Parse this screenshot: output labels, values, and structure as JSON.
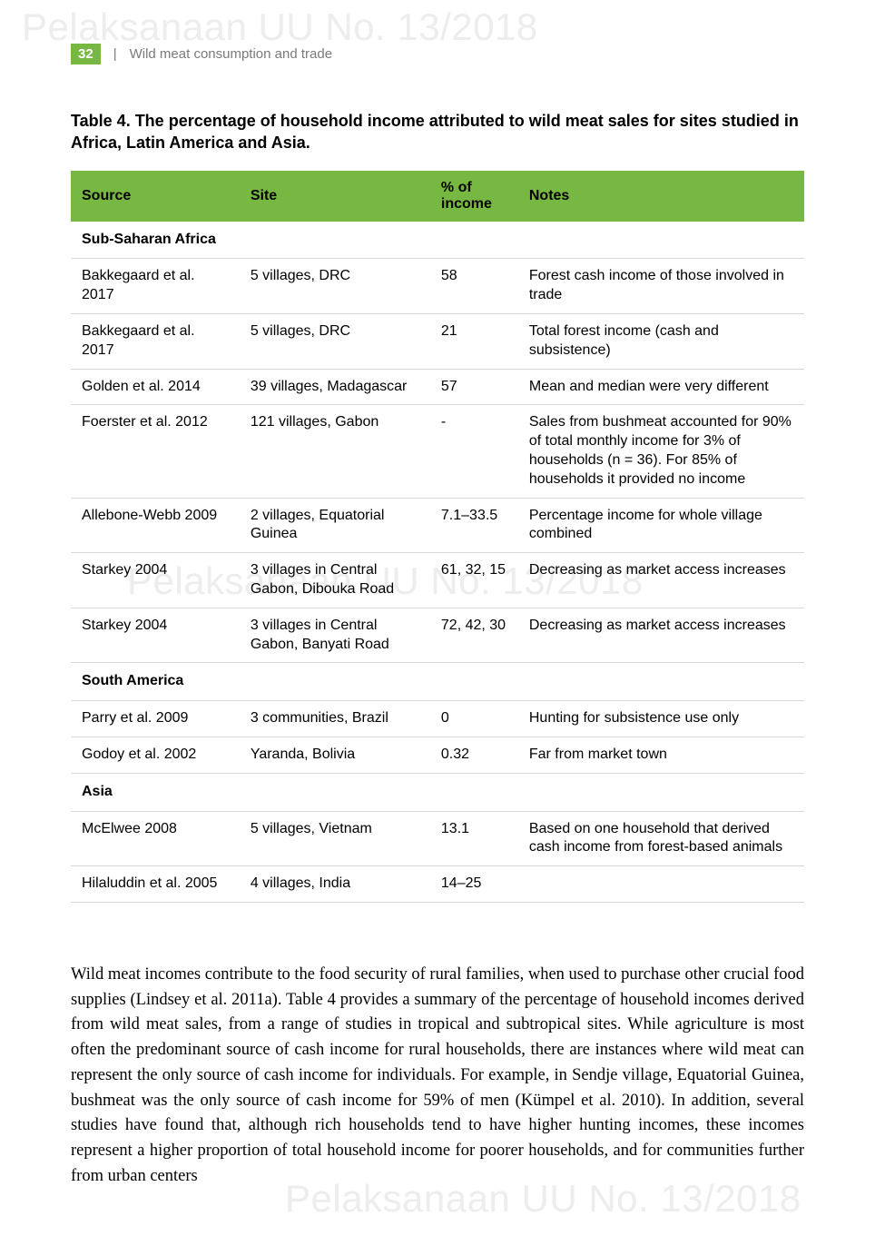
{
  "watermark": "Pelaksanaan UU No. 13/2018",
  "header": {
    "page_number": "32",
    "running_title": "Wild meat consumption and trade"
  },
  "table": {
    "caption": "Table 4.  The percentage of household income attributed to wild meat sales for sites studied in Africa, Latin America and Asia.",
    "columns": [
      "Source",
      "Site",
      "% of income",
      "Notes"
    ],
    "sections": [
      {
        "region": "Sub-Saharan Africa",
        "rows": [
          {
            "source": "Bakkegaard et al. 2017",
            "site": "5 villages, DRC",
            "pct": "58",
            "notes": "Forest cash income of those involved in trade"
          },
          {
            "source": "Bakkegaard et al. 2017",
            "site": "5 villages, DRC",
            "pct": "21",
            "notes": "Total forest income (cash and subsistence)"
          },
          {
            "source": "Golden et al. 2014",
            "site": "39 villages, Madagascar",
            "pct": "57",
            "notes": "Mean and median were very different"
          },
          {
            "source": "Foerster et al. 2012",
            "site": "121 villages, Gabon",
            "pct": "-",
            "notes": "Sales from bushmeat accounted for 90% of total monthly income for 3% of households (n = 36). For 85% of households it provided no income"
          },
          {
            "source": "Allebone-Webb 2009",
            "site": "2 villages, Equatorial Guinea",
            "pct": "7.1–33.5",
            "notes": "Percentage income for whole village combined"
          },
          {
            "source": "Starkey 2004",
            "site": "3 villages in Central Gabon, Dibouka Road",
            "pct": "61, 32, 15",
            "notes": "Decreasing as market access increases"
          },
          {
            "source": "Starkey 2004",
            "site": "3 villages in Central Gabon, Banyati Road",
            "pct": "72, 42, 30",
            "notes": "Decreasing as market access increases"
          }
        ]
      },
      {
        "region": "South America",
        "rows": [
          {
            "source": "Parry et al. 2009",
            "site": "3 communities, Brazil",
            "pct": "0",
            "notes": "Hunting for subsistence use only"
          },
          {
            "source": "Godoy et al. 2002",
            "site": "Yaranda, Bolivia",
            "pct": "0.32",
            "notes": "Far from market town"
          }
        ]
      },
      {
        "region": "Asia",
        "rows": [
          {
            "source": "McElwee 2008",
            "site": "5 villages, Vietnam",
            "pct": "13.1",
            "notes": "Based on one household that derived cash income from forest-based animals"
          },
          {
            "source": "Hilaluddin et al. 2005",
            "site": "4 villages, India",
            "pct": "14–25",
            "notes": ""
          }
        ]
      }
    ]
  },
  "body_paragraph": "Wild meat incomes contribute to the food security of rural families, when used to purchase other crucial food supplies (Lindsey et al. 2011a). Table 4 provides a summary of the percentage of household incomes derived from wild meat sales, from a range of studies in tropical and subtropical sites. While agriculture is most often the predominant source of cash income for rural households, there are instances where wild meat can represent the only source of cash income for individuals. For example, in Sendje village, Equatorial Guinea, bushmeat was the only source of cash income for 59% of men (Kümpel et al. 2010). In addition, several studies have found that, although rich households tend to have higher hunting incomes, these incomes represent a higher proportion of total household income for poorer households, and for communities further from urban centers"
}
